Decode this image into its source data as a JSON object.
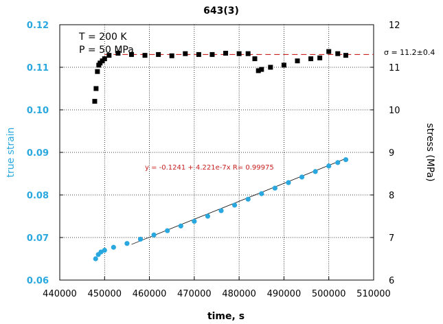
{
  "chart_data": {
    "type": "scatter",
    "title": "643(3)",
    "xlabel": "time, s",
    "ylabel_left": "true strain",
    "ylabel_right": "stress (MPa)",
    "xlim": [
      440000,
      510000
    ],
    "ylim_left": [
      0.06,
      0.12
    ],
    "ylim_right": [
      6,
      12
    ],
    "x_ticks": [
      440000,
      450000,
      460000,
      470000,
      480000,
      490000,
      500000,
      510000
    ],
    "y_ticks_left": [
      0.06,
      0.07,
      0.08,
      0.09,
      0.1,
      0.11,
      0.12
    ],
    "y_ticks_left_labels": [
      "0.06",
      "0.07",
      "0.08",
      "0.09",
      "0.10",
      "0.11",
      "0.12"
    ],
    "y_ticks_right": [
      6,
      7,
      8,
      9,
      10,
      11,
      12
    ],
    "grid": "dotted horizontal and vertical",
    "annotations": {
      "temperature": "T = 200 K",
      "pressure": "P = 50 MPa",
      "fit_equation": "y = -0.1241 + 4.221e-7x   R= 0.99975",
      "mean_stress": "σ = 11.2±0.4"
    },
    "colors": {
      "strain": "#29a8e0",
      "stress": "#000000",
      "stress_mean_line": "#c81e1e",
      "fit_text": "#c81e1e",
      "fit_line": "#000000"
    },
    "series": [
      {
        "axis": "left",
        "marker": "filled circle",
        "x": [
          448000,
          448600,
          449200,
          450000,
          452000,
          455000,
          458000,
          461000,
          464000,
          467000,
          470000,
          473000,
          476000,
          479000,
          482000,
          485000,
          488000,
          491000,
          494000,
          497000,
          500000,
          502000,
          503800
        ],
        "y": [
          0.065,
          0.066,
          0.0666,
          0.067,
          0.0677,
          0.0686,
          0.0696,
          0.0706,
          0.0716,
          0.0727,
          0.0738,
          0.075,
          0.0763,
          0.0776,
          0.079,
          0.0803,
          0.0816,
          0.0829,
          0.0842,
          0.0855,
          0.0868,
          0.0876,
          0.0883
        ]
      },
      {
        "axis": "right",
        "marker": "filled square",
        "x": [
          447800,
          448100,
          448400,
          448700,
          449000,
          449500,
          450000,
          451000,
          453000,
          456000,
          459000,
          462000,
          465000,
          468000,
          471000,
          474000,
          477000,
          480000,
          482000,
          483500,
          484300,
          485000,
          487000,
          490000,
          493000,
          496000,
          498000,
          500000,
          502000,
          503800
        ],
        "y": [
          10.2,
          10.5,
          10.9,
          11.05,
          11.1,
          11.15,
          11.2,
          11.28,
          11.33,
          11.3,
          11.28,
          11.3,
          11.27,
          11.32,
          11.3,
          11.3,
          11.33,
          11.32,
          11.32,
          11.2,
          10.92,
          10.95,
          11.0,
          11.05,
          11.15,
          11.2,
          11.22,
          11.37,
          11.32,
          11.28
        ]
      }
    ],
    "fit_line_strain": {
      "intercept": -0.1241,
      "slope": 4.221e-07,
      "x_range": [
        456000,
        503700
      ]
    },
    "mean_stress_line": {
      "value": 11.3,
      "x_range": [
        450000,
        510000
      ]
    }
  }
}
